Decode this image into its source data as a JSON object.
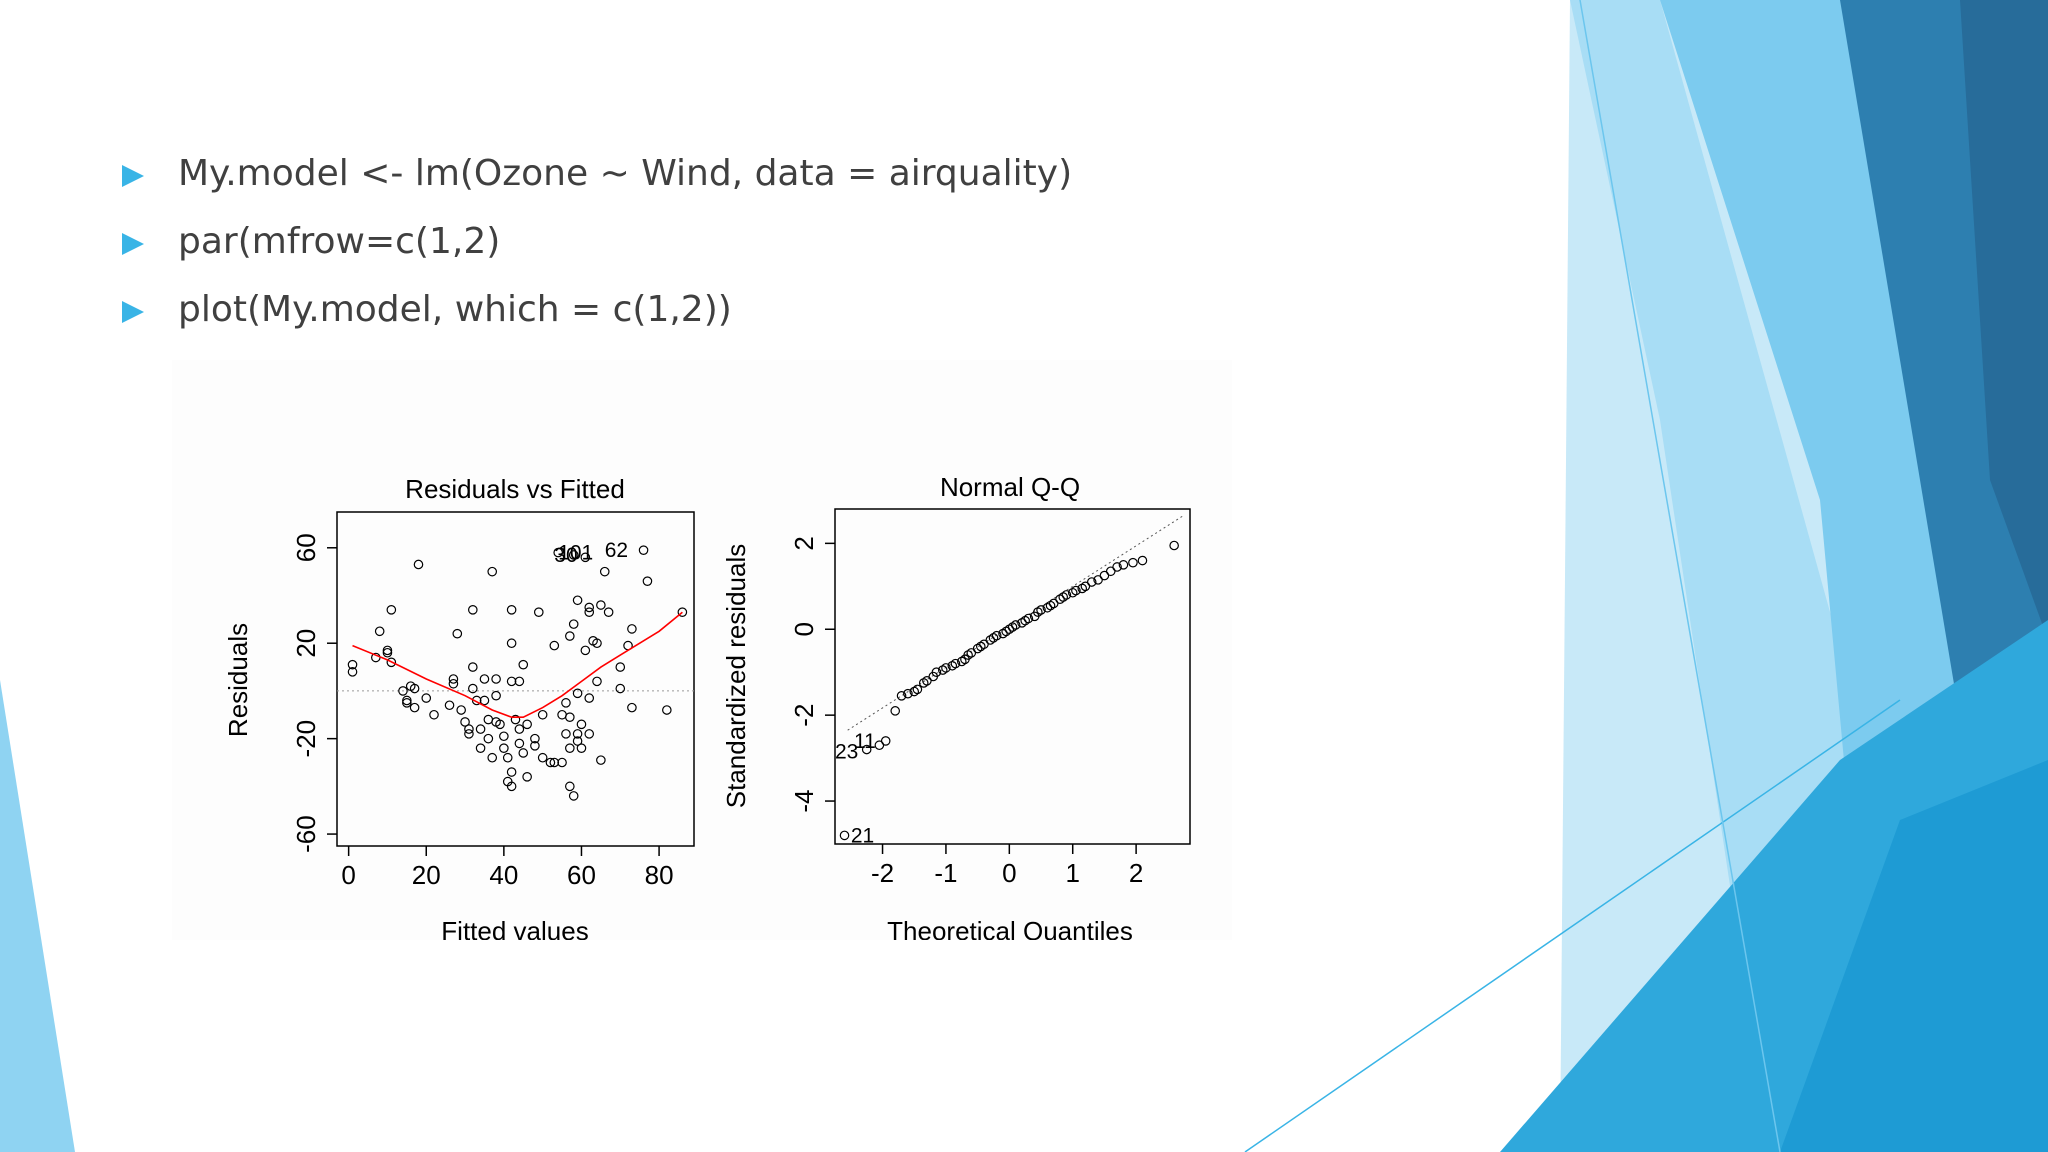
{
  "slide": {
    "bullets": [
      "My.model <- lm(Ozone ~ Wind, data = airquality)",
      "par(mfrow=c(1,2)",
      "plot(My.model, which = c(1,2))"
    ],
    "colors": {
      "bullet": "#39b4e6",
      "text": "#404040",
      "accent_light": "#a8ddf5",
      "accent_mid": "#2fa8dc",
      "accent_dark": "#266d9c",
      "lowess": "#ff0000"
    }
  },
  "chart_data": [
    {
      "type": "scatter",
      "title": "Residuals vs Fitted",
      "xlabel": "Fitted values",
      "ylabel": "Residuals",
      "xlim": [
        -3,
        89
      ],
      "ylim": [
        -65,
        75
      ],
      "xticks": [
        0,
        20,
        40,
        60,
        80
      ],
      "yticks": [
        -60,
        -20,
        20,
        60
      ],
      "reference_line_y": 0,
      "points": [
        [
          1,
          11
        ],
        [
          1,
          8
        ],
        [
          7,
          14
        ],
        [
          8,
          25
        ],
        [
          10,
          16
        ],
        [
          10,
          17
        ],
        [
          11,
          12
        ],
        [
          11,
          34
        ],
        [
          14,
          0
        ],
        [
          15,
          -4
        ],
        [
          15,
          -5
        ],
        [
          16,
          2
        ],
        [
          17,
          1
        ],
        [
          17,
          -7
        ],
        [
          18,
          53
        ],
        [
          20,
          -3
        ],
        [
          22,
          -10
        ],
        [
          26,
          -6
        ],
        [
          27,
          3
        ],
        [
          27,
          5
        ],
        [
          28,
          24
        ],
        [
          29,
          -8
        ],
        [
          30,
          -13
        ],
        [
          31,
          -16
        ],
        [
          31,
          -18
        ],
        [
          32,
          10
        ],
        [
          32,
          1
        ],
        [
          32,
          34
        ],
        [
          33,
          -4
        ],
        [
          34,
          -16
        ],
        [
          34,
          -24
        ],
        [
          35,
          5
        ],
        [
          35,
          -4
        ],
        [
          36,
          -12
        ],
        [
          36,
          -20
        ],
        [
          37,
          -28
        ],
        [
          37,
          50
        ],
        [
          38,
          5
        ],
        [
          38,
          -13
        ],
        [
          38,
          -2
        ],
        [
          39,
          -14
        ],
        [
          40,
          -19
        ],
        [
          40,
          -24
        ],
        [
          41,
          -28
        ],
        [
          41,
          -38
        ],
        [
          42,
          34
        ],
        [
          42,
          20
        ],
        [
          42,
          -34
        ],
        [
          42,
          -40
        ],
        [
          42,
          4
        ],
        [
          43,
          -12
        ],
        [
          44,
          -16
        ],
        [
          44,
          -22
        ],
        [
          44,
          4
        ],
        [
          45,
          11
        ],
        [
          45,
          -26
        ],
        [
          46,
          -14
        ],
        [
          46,
          -36
        ],
        [
          48,
          -20
        ],
        [
          48,
          -23
        ],
        [
          49,
          33
        ],
        [
          50,
          -28
        ],
        [
          50,
          -10
        ],
        [
          52,
          -30
        ],
        [
          53,
          19
        ],
        [
          53,
          -30
        ],
        [
          54,
          58
        ],
        [
          55,
          -10
        ],
        [
          55,
          -30
        ],
        [
          56,
          -5
        ],
        [
          56,
          -18
        ],
        [
          57,
          23
        ],
        [
          57,
          -11
        ],
        [
          57,
          -24
        ],
        [
          57,
          -40
        ],
        [
          58,
          57
        ],
        [
          58,
          28
        ],
        [
          58,
          -44
        ],
        [
          59,
          38
        ],
        [
          59,
          -1
        ],
        [
          59,
          -18
        ],
        [
          59,
          -21
        ],
        [
          60,
          -14
        ],
        [
          60,
          -24
        ],
        [
          61,
          56
        ],
        [
          61,
          17
        ],
        [
          62,
          33
        ],
        [
          62,
          35
        ],
        [
          62,
          -3
        ],
        [
          62,
          -18
        ],
        [
          63,
          21
        ],
        [
          64,
          20
        ],
        [
          64,
          4
        ],
        [
          65,
          36
        ],
        [
          65,
          -29
        ],
        [
          66,
          50
        ],
        [
          67,
          33
        ],
        [
          70,
          10
        ],
        [
          70,
          1
        ],
        [
          72,
          19
        ],
        [
          73,
          26
        ],
        [
          73,
          -7
        ],
        [
          76,
          59
        ],
        [
          77,
          46
        ],
        [
          82,
          -8
        ],
        [
          86,
          33
        ]
      ],
      "lowess": [
        [
          1,
          19
        ],
        [
          10,
          13
        ],
        [
          20,
          5
        ],
        [
          30,
          -2
        ],
        [
          37,
          -8
        ],
        [
          42,
          -11
        ],
        [
          45,
          -11
        ],
        [
          50,
          -7
        ],
        [
          55,
          -2
        ],
        [
          60,
          4
        ],
        [
          65,
          10
        ],
        [
          70,
          15
        ],
        [
          75,
          20
        ],
        [
          80,
          25
        ],
        [
          86,
          33
        ]
      ],
      "labels": [
        {
          "text": "101",
          "x": 54,
          "y": 58,
          "anchor": "start"
        },
        {
          "text": "30",
          "x": 53,
          "y": 57,
          "anchor": "start"
        },
        {
          "text": "62",
          "x": 66,
          "y": 59,
          "anchor": "start"
        }
      ]
    },
    {
      "type": "scatter",
      "title": "Normal Q-Q",
      "xlabel": "Theoretical Quantiles",
      "ylabel": "Standardized residuals",
      "xlim": [
        -2.75,
        2.85
      ],
      "ylim": [
        -5.0,
        2.8
      ],
      "xticks": [
        -2,
        -1,
        0,
        1,
        2
      ],
      "yticks": [
        -4,
        -2,
        0,
        2
      ],
      "reference_line": [
        [
          -2.55,
          -2.35
        ],
        [
          2.75,
          2.65
        ]
      ],
      "points": [
        [
          -2.6,
          -4.8
        ],
        [
          -2.25,
          -2.8
        ],
        [
          -2.05,
          -2.7
        ],
        [
          -1.95,
          -2.6
        ],
        [
          -1.8,
          -1.9
        ],
        [
          -1.7,
          -1.55
        ],
        [
          -1.6,
          -1.5
        ],
        [
          -1.5,
          -1.45
        ],
        [
          -1.45,
          -1.4
        ],
        [
          -1.35,
          -1.25
        ],
        [
          -1.3,
          -1.2
        ],
        [
          -1.2,
          -1.1
        ],
        [
          -1.15,
          -1.0
        ],
        [
          -1.05,
          -0.95
        ],
        [
          -1.0,
          -0.9
        ],
        [
          -0.9,
          -0.85
        ],
        [
          -0.85,
          -0.8
        ],
        [
          -0.75,
          -0.75
        ],
        [
          -0.7,
          -0.7
        ],
        [
          -0.65,
          -0.6
        ],
        [
          -0.6,
          -0.55
        ],
        [
          -0.5,
          -0.45
        ],
        [
          -0.45,
          -0.4
        ],
        [
          -0.4,
          -0.35
        ],
        [
          -0.3,
          -0.25
        ],
        [
          -0.25,
          -0.2
        ],
        [
          -0.2,
          -0.15
        ],
        [
          -0.1,
          -0.1
        ],
        [
          -0.05,
          -0.05
        ],
        [
          0.0,
          0.0
        ],
        [
          0.05,
          0.05
        ],
        [
          0.1,
          0.1
        ],
        [
          0.2,
          0.15
        ],
        [
          0.25,
          0.2
        ],
        [
          0.3,
          0.25
        ],
        [
          0.4,
          0.3
        ],
        [
          0.45,
          0.4
        ],
        [
          0.5,
          0.45
        ],
        [
          0.6,
          0.5
        ],
        [
          0.65,
          0.55
        ],
        [
          0.7,
          0.6
        ],
        [
          0.8,
          0.7
        ],
        [
          0.85,
          0.75
        ],
        [
          0.9,
          0.8
        ],
        [
          1.0,
          0.85
        ],
        [
          1.05,
          0.9
        ],
        [
          1.15,
          0.95
        ],
        [
          1.2,
          1.0
        ],
        [
          1.3,
          1.1
        ],
        [
          1.4,
          1.15
        ],
        [
          1.5,
          1.25
        ],
        [
          1.6,
          1.35
        ],
        [
          1.7,
          1.45
        ],
        [
          1.8,
          1.5
        ],
        [
          1.95,
          1.55
        ],
        [
          2.1,
          1.6
        ],
        [
          2.6,
          1.95
        ]
      ],
      "labels": [
        {
          "text": "23",
          "x": -2.75,
          "y": -2.85,
          "anchor": "start"
        },
        {
          "text": "11",
          "x": -2.45,
          "y": -2.6,
          "anchor": "start"
        },
        {
          "text": "21",
          "x": -2.5,
          "y": -4.8,
          "anchor": "start"
        }
      ]
    }
  ]
}
